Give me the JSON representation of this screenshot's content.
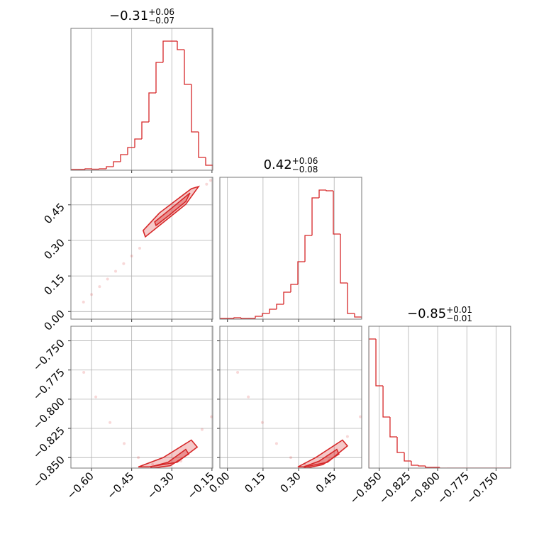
{
  "chart_data": [
    {
      "type": "histogram",
      "title": "−0.31",
      "title_upper": "+0.06",
      "title_lower": "−0.07",
      "color": "#d62728",
      "bins": [
        -0.677,
        -0.6505,
        -0.624,
        -0.5975,
        -0.571,
        -0.5445,
        -0.518,
        -0.4915,
        -0.465,
        -0.4385,
        -0.412,
        -0.3855,
        -0.359,
        -0.3325,
        -0.306,
        -0.2795,
        -0.253,
        -0.2265,
        -0.2,
        -0.1735,
        -0.147
      ],
      "values": [
        1,
        1,
        2,
        1.5,
        2,
        5,
        12,
        22,
        32,
        44,
        68,
        109,
        152,
        182,
        182,
        170,
        121,
        54,
        18,
        7
      ],
      "xlim": [
        -0.677,
        -0.147
      ],
      "ylim": [
        0,
        200
      ],
      "xticks": [
        -0.6,
        -0.45,
        -0.3,
        -0.15
      ],
      "xtick_labels": false,
      "grid": true
    },
    {
      "type": "scatter",
      "color": "#d62728",
      "x": [
        -0.63,
        -0.6,
        -0.57,
        -0.54,
        -0.51,
        -0.48,
        -0.45,
        -0.42,
        -0.17,
        -0.155
      ],
      "y": [
        0.04,
        0.072,
        0.105,
        0.137,
        0.17,
        0.202,
        0.234,
        0.267,
        0.537,
        0.553
      ],
      "contours": [
        {
          "x": [
            -0.407,
            -0.346,
            -0.227,
            -0.2,
            -0.248,
            -0.399
          ],
          "y": [
            0.342,
            0.416,
            0.518,
            0.527,
            0.452,
            0.315
          ]
        },
        {
          "x": [
            -0.364,
            -0.306,
            -0.232,
            -0.248,
            -0.311,
            -0.359
          ],
          "y": [
            0.378,
            0.431,
            0.5,
            0.464,
            0.405,
            0.363
          ]
        }
      ],
      "xlim": [
        -0.677,
        -0.147
      ],
      "ylim": [
        -0.032,
        0.566
      ],
      "xticks": [
        -0.6,
        -0.45,
        -0.3,
        -0.15
      ],
      "xtick_labels": false,
      "yticks": [
        {
          "value": 0,
          "label": "0.00"
        },
        0.15,
        {
          "value": 0.3,
          "label": "0.30"
        },
        0.45
      ],
      "ytick_labels": true,
      "grid": true
    },
    {
      "type": "histogram",
      "title": "0.42",
      "title_upper": "+0.06",
      "title_lower": "−0.08",
      "color": "#d62728",
      "bins": [
        -0.032,
        -0.0021,
        0.0278,
        0.0577,
        0.0876,
        0.1175,
        0.1474,
        0.1773,
        0.2072,
        0.2371,
        0.267,
        0.2969,
        0.3268,
        0.3567,
        0.3866,
        0.4165,
        0.4464,
        0.4763,
        0.5062,
        0.5361,
        0.566
      ],
      "values": [
        1,
        1,
        2,
        1,
        1,
        4,
        8,
        14,
        21,
        38,
        49,
        81,
        118,
        171,
        182,
        181,
        120,
        51,
        8,
        3
      ],
      "xlim": [
        -0.032,
        0.566
      ],
      "ylim": [
        0,
        200
      ],
      "xticks": [
        0,
        0.15,
        0.3,
        0.45
      ],
      "xtick_labels": false,
      "grid": true
    },
    {
      "type": "scatter",
      "color": "#d62728",
      "x": [
        -0.629,
        -0.584,
        -0.531,
        -0.478,
        -0.425,
        -0.372,
        -0.266,
        -0.187,
        -0.152
      ],
      "y": [
        -0.777,
        -0.798,
        -0.82,
        -0.838,
        -0.85,
        -0.856,
        -0.853,
        -0.826,
        -0.815
      ],
      "contours": [
        {
          "x": [
            -0.425,
            -0.332,
            -0.227,
            -0.205,
            -0.28,
            -0.386
          ],
          "y": [
            -0.858,
            -0.85,
            -0.835,
            -0.841,
            -0.854,
            -0.858
          ]
        },
        {
          "x": [
            -0.38,
            -0.314,
            -0.248,
            -0.237,
            -0.306,
            -0.375
          ],
          "y": [
            -0.858,
            -0.854,
            -0.843,
            -0.847,
            -0.857,
            -0.859
          ]
        }
      ],
      "xlim": [
        -0.677,
        -0.147
      ],
      "ylim": [
        -0.859,
        -0.7375
      ],
      "xticks": [
        {
          "value": -0.6,
          "label": "−0.60"
        },
        {
          "value": -0.45,
          "label": "−0.45"
        },
        {
          "value": -0.3,
          "label": "−0.30"
        },
        {
          "value": -0.15,
          "label": "−0.15"
        }
      ],
      "xtick_labels": true,
      "yticks": [
        {
          "value": -0.85,
          "label": "−0.850"
        },
        {
          "value": -0.825,
          "label": "−0.825"
        },
        {
          "value": -0.8,
          "label": "−0.800"
        },
        {
          "value": -0.775,
          "label": "−0.775"
        },
        {
          "value": -0.75,
          "label": "−0.750"
        }
      ],
      "ytick_labels": true,
      "grid": true
    },
    {
      "type": "scatter",
      "color": "#d62728",
      "x": [
        0.043,
        0.088,
        0.147,
        0.207,
        0.267,
        0.327,
        0.431,
        0.506,
        0.56
      ],
      "y": [
        -0.777,
        -0.798,
        -0.82,
        -0.838,
        -0.85,
        -0.856,
        -0.852,
        -0.832,
        -0.815
      ],
      "contours": [
        {
          "x": [
            0.297,
            0.372,
            0.485,
            0.506,
            0.422,
            0.327
          ],
          "y": [
            -0.858,
            -0.85,
            -0.835,
            -0.84,
            -0.854,
            -0.858
          ]
        },
        {
          "x": [
            0.321,
            0.387,
            0.461,
            0.47,
            0.402,
            0.333
          ],
          "y": [
            -0.858,
            -0.853,
            -0.843,
            -0.847,
            -0.856,
            -0.859
          ]
        }
      ],
      "xlim": [
        -0.032,
        0.566
      ],
      "ylim": [
        -0.859,
        -0.7375
      ],
      "xticks": [
        {
          "value": 0,
          "label": "0.00"
        },
        0.15,
        {
          "value": 0.3,
          "label": "0.30"
        },
        0.45
      ],
      "xtick_labels": true,
      "yticks": [
        -0.85,
        -0.825,
        -0.8,
        -0.775,
        -0.75
      ],
      "ytick_labels": false,
      "grid": true
    },
    {
      "type": "histogram",
      "title": "−0.85",
      "title_upper": "+0.01",
      "title_lower": "−0.01",
      "color": "#d62728",
      "bins": [
        -0.859,
        -0.8529,
        -0.8468,
        -0.8408,
        -0.8347,
        -0.8286,
        -0.8226,
        -0.8165,
        -0.8104,
        -0.8043,
        -0.7983,
        -0.7922,
        -0.7861,
        -0.78,
        -0.774,
        -0.7679,
        -0.7618,
        -0.7558,
        -0.7497,
        -0.7436,
        -0.7375
      ],
      "values": [
        182,
        116,
        72,
        44,
        22,
        10,
        4,
        3,
        1,
        1,
        0,
        0,
        0,
        0,
        0,
        0,
        0,
        0,
        0,
        0
      ],
      "xlim": [
        -0.859,
        -0.7375
      ],
      "ylim": [
        0,
        200
      ],
      "xticks": [
        {
          "value": -0.85,
          "label": "−0.850"
        },
        {
          "value": -0.825,
          "label": "−0.825"
        },
        {
          "value": -0.8,
          "label": "−0.800"
        },
        {
          "value": -0.775,
          "label": "−0.775"
        },
        {
          "value": -0.75,
          "label": "−0.750"
        }
      ],
      "xtick_labels": true,
      "grid": true
    }
  ]
}
